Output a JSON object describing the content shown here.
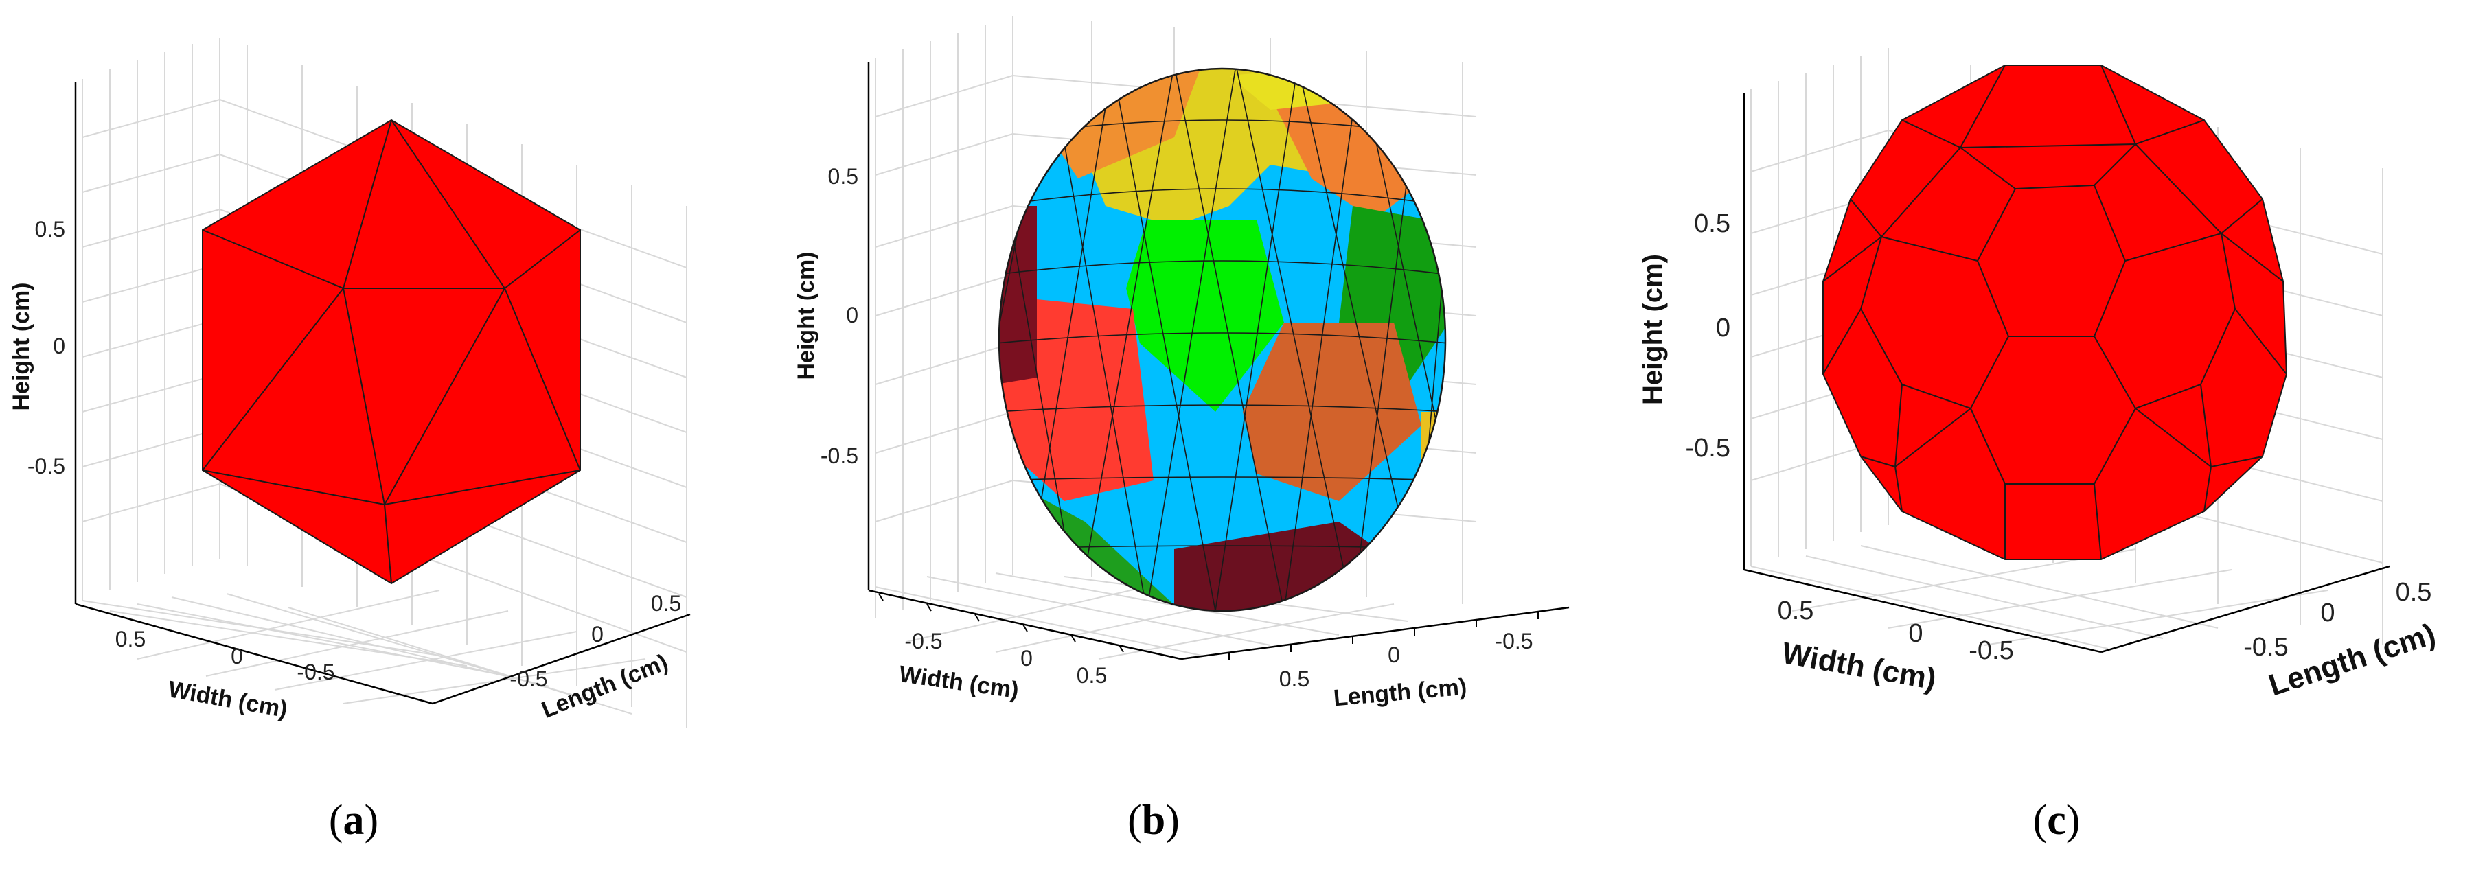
{
  "panels": [
    {
      "caption_letter": "a",
      "face_color": "#ff0000",
      "axes": {
        "zlabel": "Height (cm)",
        "xlabel": "Width (cm)",
        "ylabel": "Length (cm)",
        "zticks": [
          "0.5",
          "0",
          "-0.5"
        ],
        "xticks": [
          "0.5",
          "0",
          "-0.5"
        ],
        "yticks": [
          "-0.5",
          "0",
          "0.5"
        ]
      }
    },
    {
      "caption_letter": "b",
      "face_colors": [
        "#00bfff",
        "#00ff00",
        "#ff3b30",
        "#d2622b",
        "#e6d21e",
        "#f08030",
        "#6b1020",
        "#1e9e1e"
      ],
      "axes": {
        "zlabel": "Height (cm)",
        "xlabel": "Width (cm)",
        "ylabel": "Length (cm)",
        "zticks": [
          "0.5",
          "0",
          "-0.5"
        ],
        "xticks": [
          "-0.5",
          "0",
          "0.5"
        ],
        "yticks": [
          "0.5",
          "0",
          "-0.5"
        ]
      }
    },
    {
      "caption_letter": "c",
      "face_color": "#ff0000",
      "axes": {
        "zlabel": "Height (cm)",
        "xlabel": "Width (cm)",
        "ylabel": "Length (cm)",
        "zticks": [
          "0.5",
          "0",
          "-0.5"
        ],
        "xticks": [
          "0.5",
          "0",
          "-0.5"
        ],
        "yticks": [
          "-0.5",
          "0",
          "0.5"
        ]
      }
    }
  ]
}
